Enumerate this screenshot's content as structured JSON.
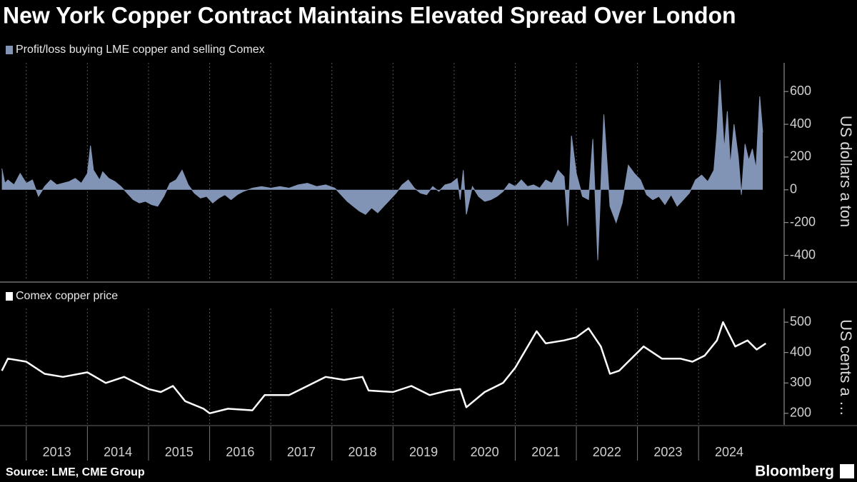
{
  "title": "New York Copper Contract Maintains Elevated Spread Over London",
  "source": "Source: LME, CME Group",
  "brand": "Bloomberg",
  "chart_data": [
    {
      "type": "area",
      "y_label": "US dollars a ton",
      "x": [
        2012.6,
        2012.65,
        2012.7,
        2012.8,
        2012.9,
        2013.0,
        2013.1,
        2013.2,
        2013.3,
        2013.4,
        2013.5,
        2013.6,
        2013.7,
        2013.8,
        2013.9,
        2014.0,
        2014.05,
        2014.1,
        2014.2,
        2014.25,
        2014.35,
        2014.45,
        2014.55,
        2014.65,
        2014.75,
        2014.85,
        2014.95,
        2015.05,
        2015.15,
        2015.25,
        2015.35,
        2015.45,
        2015.55,
        2015.65,
        2015.75,
        2015.85,
        2015.95,
        2016.05,
        2016.15,
        2016.25,
        2016.35,
        2016.45,
        2016.55,
        2016.7,
        2016.85,
        2017.0,
        2017.15,
        2017.3,
        2017.45,
        2017.6,
        2017.75,
        2017.9,
        2018.05,
        2018.15,
        2018.25,
        2018.35,
        2018.45,
        2018.55,
        2018.65,
        2018.75,
        2018.85,
        2018.95,
        2019.05,
        2019.15,
        2019.25,
        2019.35,
        2019.45,
        2019.55,
        2019.65,
        2019.75,
        2019.85,
        2019.95,
        2020.05,
        2020.1,
        2020.15,
        2020.2,
        2020.3,
        2020.4,
        2020.5,
        2020.6,
        2020.7,
        2020.8,
        2020.9,
        2021.0,
        2021.1,
        2021.2,
        2021.3,
        2021.4,
        2021.5,
        2021.6,
        2021.7,
        2021.8,
        2021.86,
        2021.92,
        2022.0,
        2022.1,
        2022.2,
        2022.27,
        2022.35,
        2022.45,
        2022.55,
        2022.65,
        2022.75,
        2022.85,
        2022.95,
        2023.05,
        2023.15,
        2023.25,
        2023.35,
        2023.45,
        2023.55,
        2023.65,
        2023.75,
        2023.85,
        2023.95,
        2024.05,
        2024.15,
        2024.25,
        2024.3,
        2024.35,
        2024.42,
        2024.47,
        2024.52,
        2024.58,
        2024.65,
        2024.7,
        2024.76,
        2024.82,
        2024.88,
        2024.94,
        2025.0,
        2025.05
      ],
      "series": [
        {
          "name": "Profit/loss buying LME copper and selling Comex",
          "color": "#8294b6",
          "values": [
            130,
            40,
            60,
            30,
            100,
            40,
            60,
            -40,
            20,
            60,
            30,
            40,
            50,
            70,
            40,
            100,
            270,
            120,
            60,
            110,
            70,
            50,
            20,
            -20,
            -60,
            -80,
            -70,
            -90,
            -100,
            -40,
            40,
            60,
            120,
            30,
            -20,
            -50,
            -40,
            -80,
            -50,
            -30,
            -60,
            -30,
            -10,
            10,
            20,
            10,
            20,
            10,
            30,
            40,
            20,
            30,
            10,
            -30,
            -70,
            -100,
            -130,
            -150,
            -110,
            -140,
            -100,
            -60,
            -20,
            30,
            60,
            10,
            -20,
            -30,
            20,
            -10,
            30,
            40,
            70,
            -60,
            120,
            -150,
            20,
            -40,
            -70,
            -60,
            -40,
            -10,
            40,
            20,
            60,
            20,
            30,
            10,
            60,
            40,
            120,
            80,
            -220,
            330,
            100,
            -40,
            -60,
            310,
            -430,
            460,
            -100,
            -200,
            -80,
            150,
            100,
            60,
            -30,
            -60,
            -40,
            -90,
            -30,
            -100,
            -60,
            -20,
            60,
            90,
            50,
            120,
            350,
            670,
            250,
            480,
            150,
            400,
            200,
            -30,
            280,
            180,
            250,
            130,
            570,
            350
          ]
        }
      ],
      "xlim": [
        2012.57,
        2025.4
      ],
      "xticks": [
        2013,
        2014,
        2015,
        2016,
        2017,
        2018,
        2019,
        2020,
        2021,
        2022,
        2023,
        2024
      ],
      "ylim": [
        -550,
        775
      ],
      "yticks": [
        -400,
        -200,
        0,
        200,
        400,
        600
      ],
      "grid": true
    },
    {
      "type": "line",
      "y_label": "US cents a …",
      "x": [
        2012.6,
        2012.7,
        2013.0,
        2013.3,
        2013.6,
        2014.0,
        2014.3,
        2014.6,
        2015.0,
        2015.2,
        2015.4,
        2015.6,
        2015.9,
        2016.0,
        2016.3,
        2016.7,
        2016.9,
        2017.3,
        2017.6,
        2017.9,
        2018.2,
        2018.5,
        2018.6,
        2019.0,
        2019.3,
        2019.6,
        2019.9,
        2020.1,
        2020.2,
        2020.5,
        2020.8,
        2021.0,
        2021.35,
        2021.5,
        2021.8,
        2022.0,
        2022.2,
        2022.4,
        2022.55,
        2022.7,
        2022.9,
        2023.1,
        2023.4,
        2023.7,
        2023.9,
        2024.1,
        2024.3,
        2024.4,
        2024.6,
        2024.8,
        2024.95,
        2025.1
      ],
      "series": [
        {
          "name": "Comex copper price",
          "color": "#ffffff",
          "values": [
            340,
            380,
            370,
            330,
            320,
            335,
            300,
            320,
            280,
            270,
            290,
            240,
            215,
            200,
            215,
            210,
            260,
            260,
            290,
            320,
            310,
            320,
            275,
            270,
            290,
            260,
            275,
            280,
            220,
            270,
            300,
            350,
            470,
            430,
            440,
            450,
            480,
            420,
            330,
            340,
            380,
            420,
            380,
            380,
            370,
            390,
            440,
            500,
            420,
            440,
            410,
            430
          ]
        }
      ],
      "xlim": [
        2012.57,
        2025.4
      ],
      "xticks": [
        2013,
        2014,
        2015,
        2016,
        2017,
        2018,
        2019,
        2020,
        2021,
        2022,
        2023,
        2024
      ],
      "ylim": [
        162,
        545
      ],
      "yticks": [
        200,
        300,
        400,
        500
      ],
      "grid": true
    }
  ]
}
